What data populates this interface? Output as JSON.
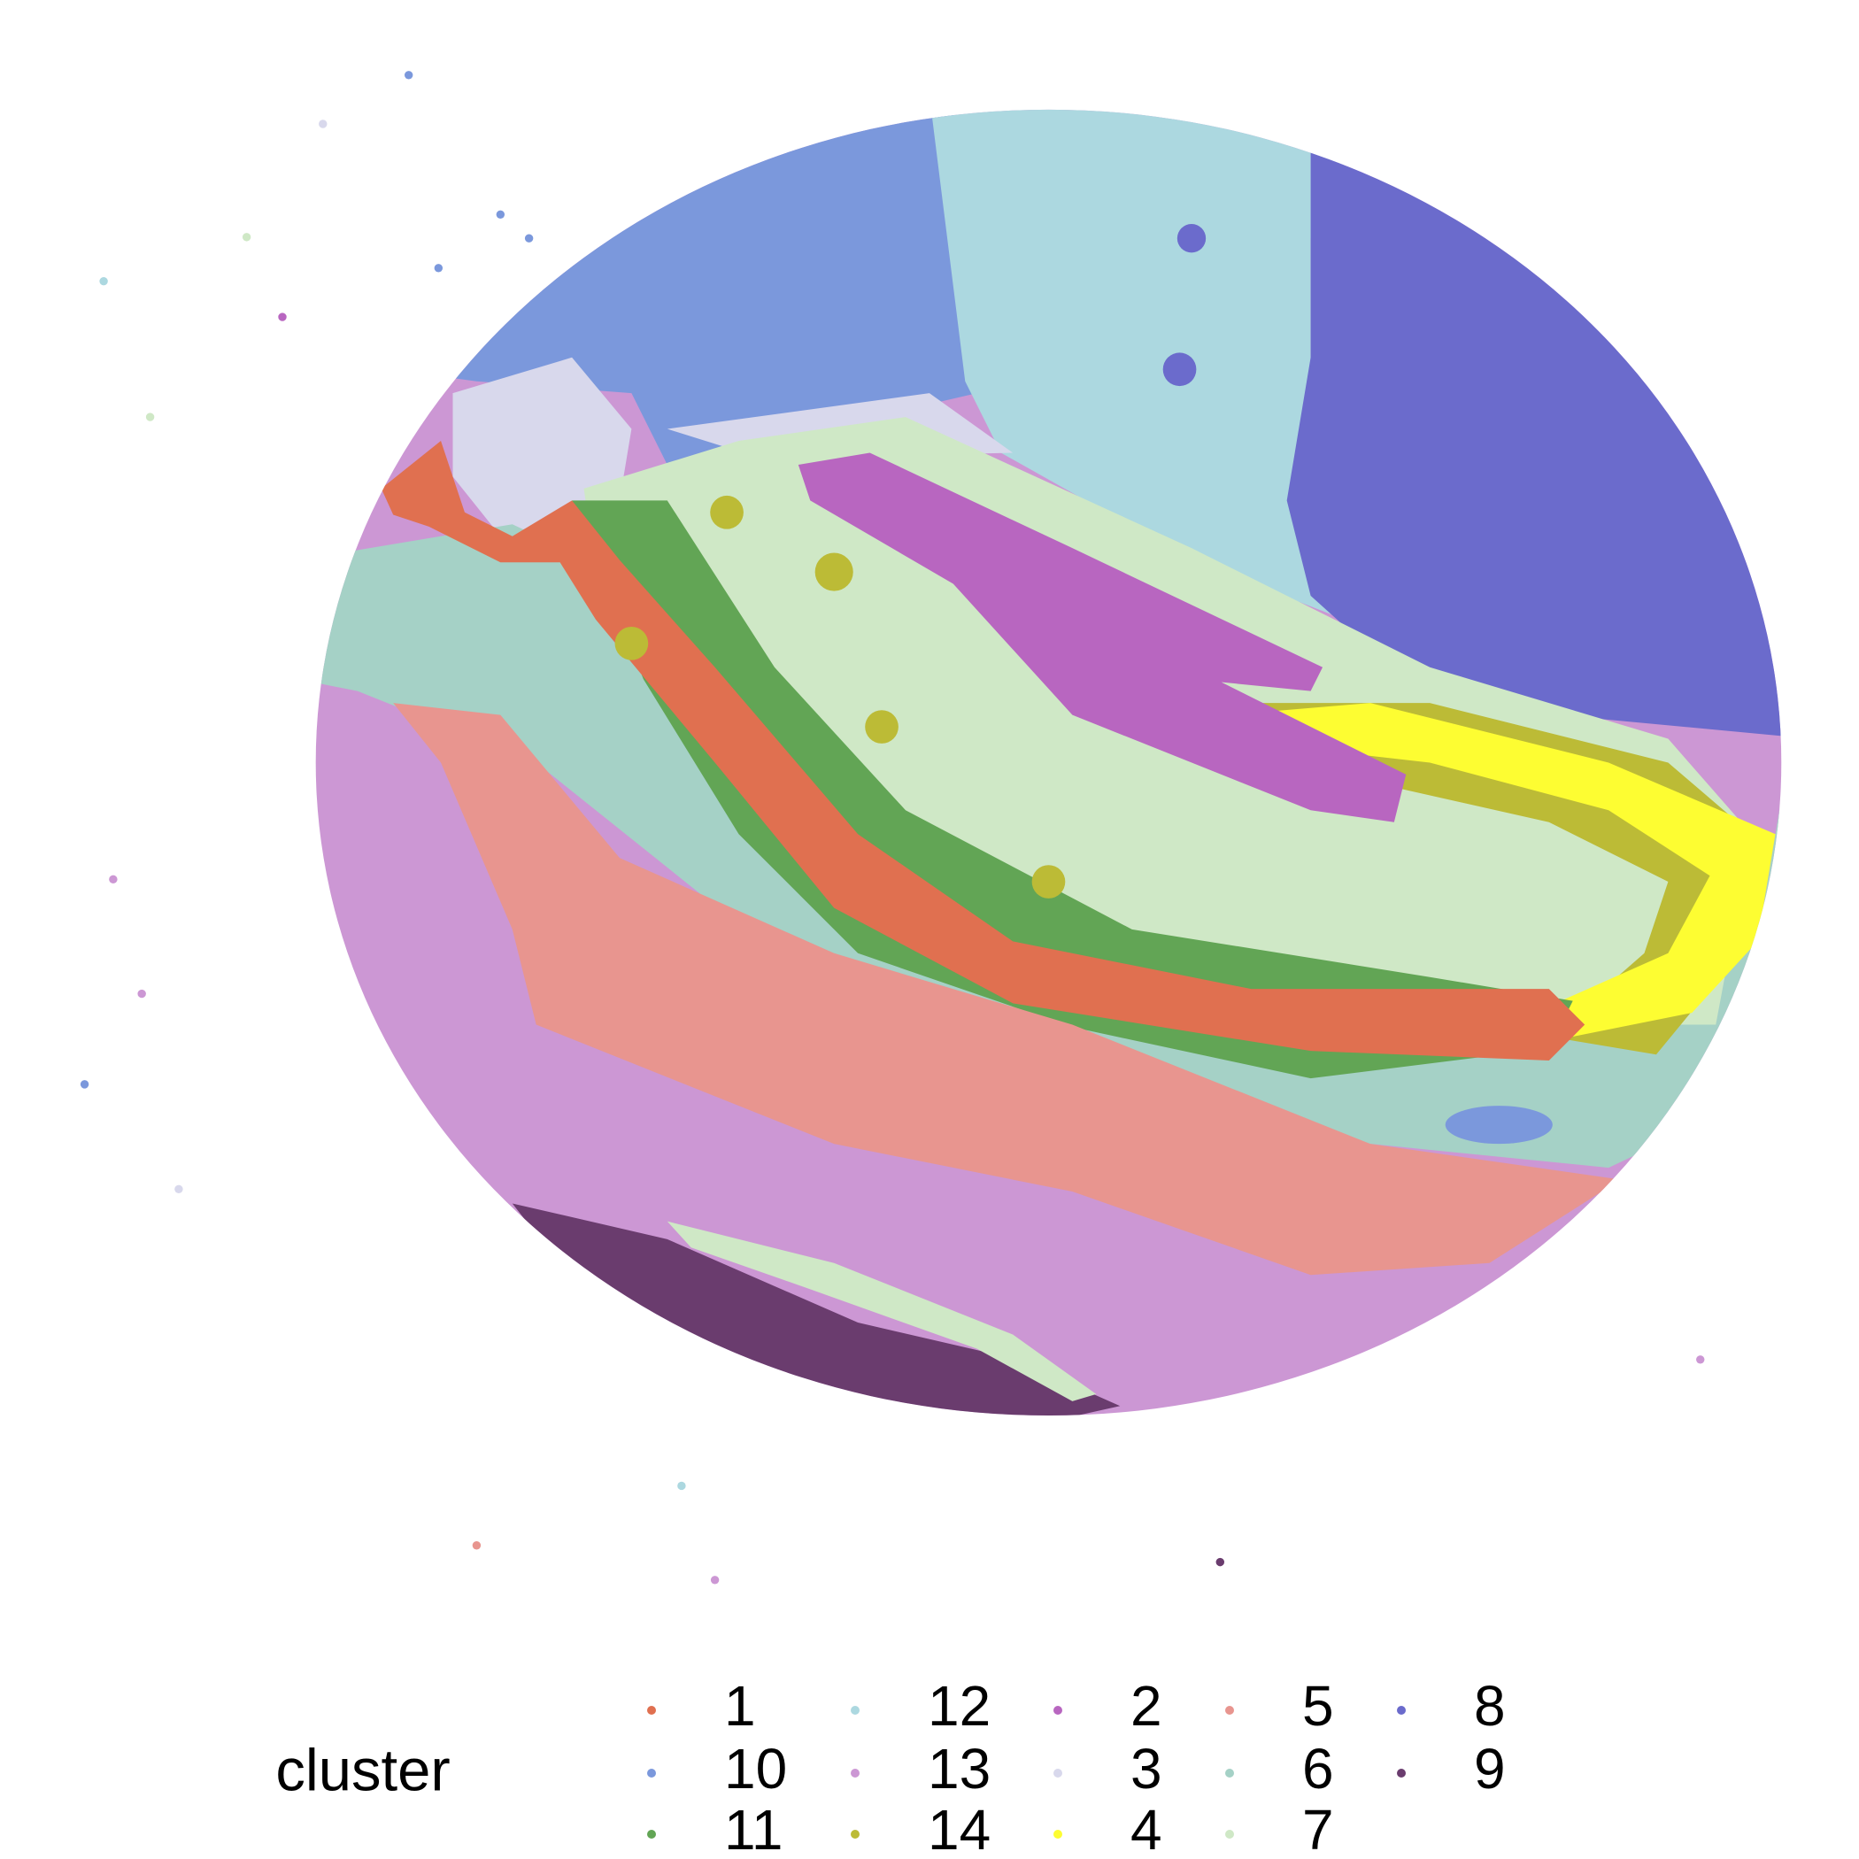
{
  "chart_data": {
    "type": "scatter",
    "legend_title": "cluster",
    "legend_position": "bottom",
    "series": [
      {
        "name": "1",
        "color": "#e07050"
      },
      {
        "name": "10",
        "color": "#7b98dc"
      },
      {
        "name": "11",
        "color": "#62a555"
      },
      {
        "name": "12",
        "color": "#acd8e0"
      },
      {
        "name": "13",
        "color": "#cc97d4"
      },
      {
        "name": "14",
        "color": "#bcbb36"
      },
      {
        "name": "2",
        "color": "#b866c0"
      },
      {
        "name": "3",
        "color": "#d8d8ec"
      },
      {
        "name": "4",
        "color": "#fdfd32"
      },
      {
        "name": "5",
        "color": "#e8958f"
      },
      {
        "name": "6",
        "color": "#a5d1c6"
      },
      {
        "name": "7",
        "color": "#cfe8c6"
      },
      {
        "name": "8",
        "color": "#6b6bcc"
      },
      {
        "name": "9",
        "color": "#6a3c6e"
      }
    ]
  }
}
